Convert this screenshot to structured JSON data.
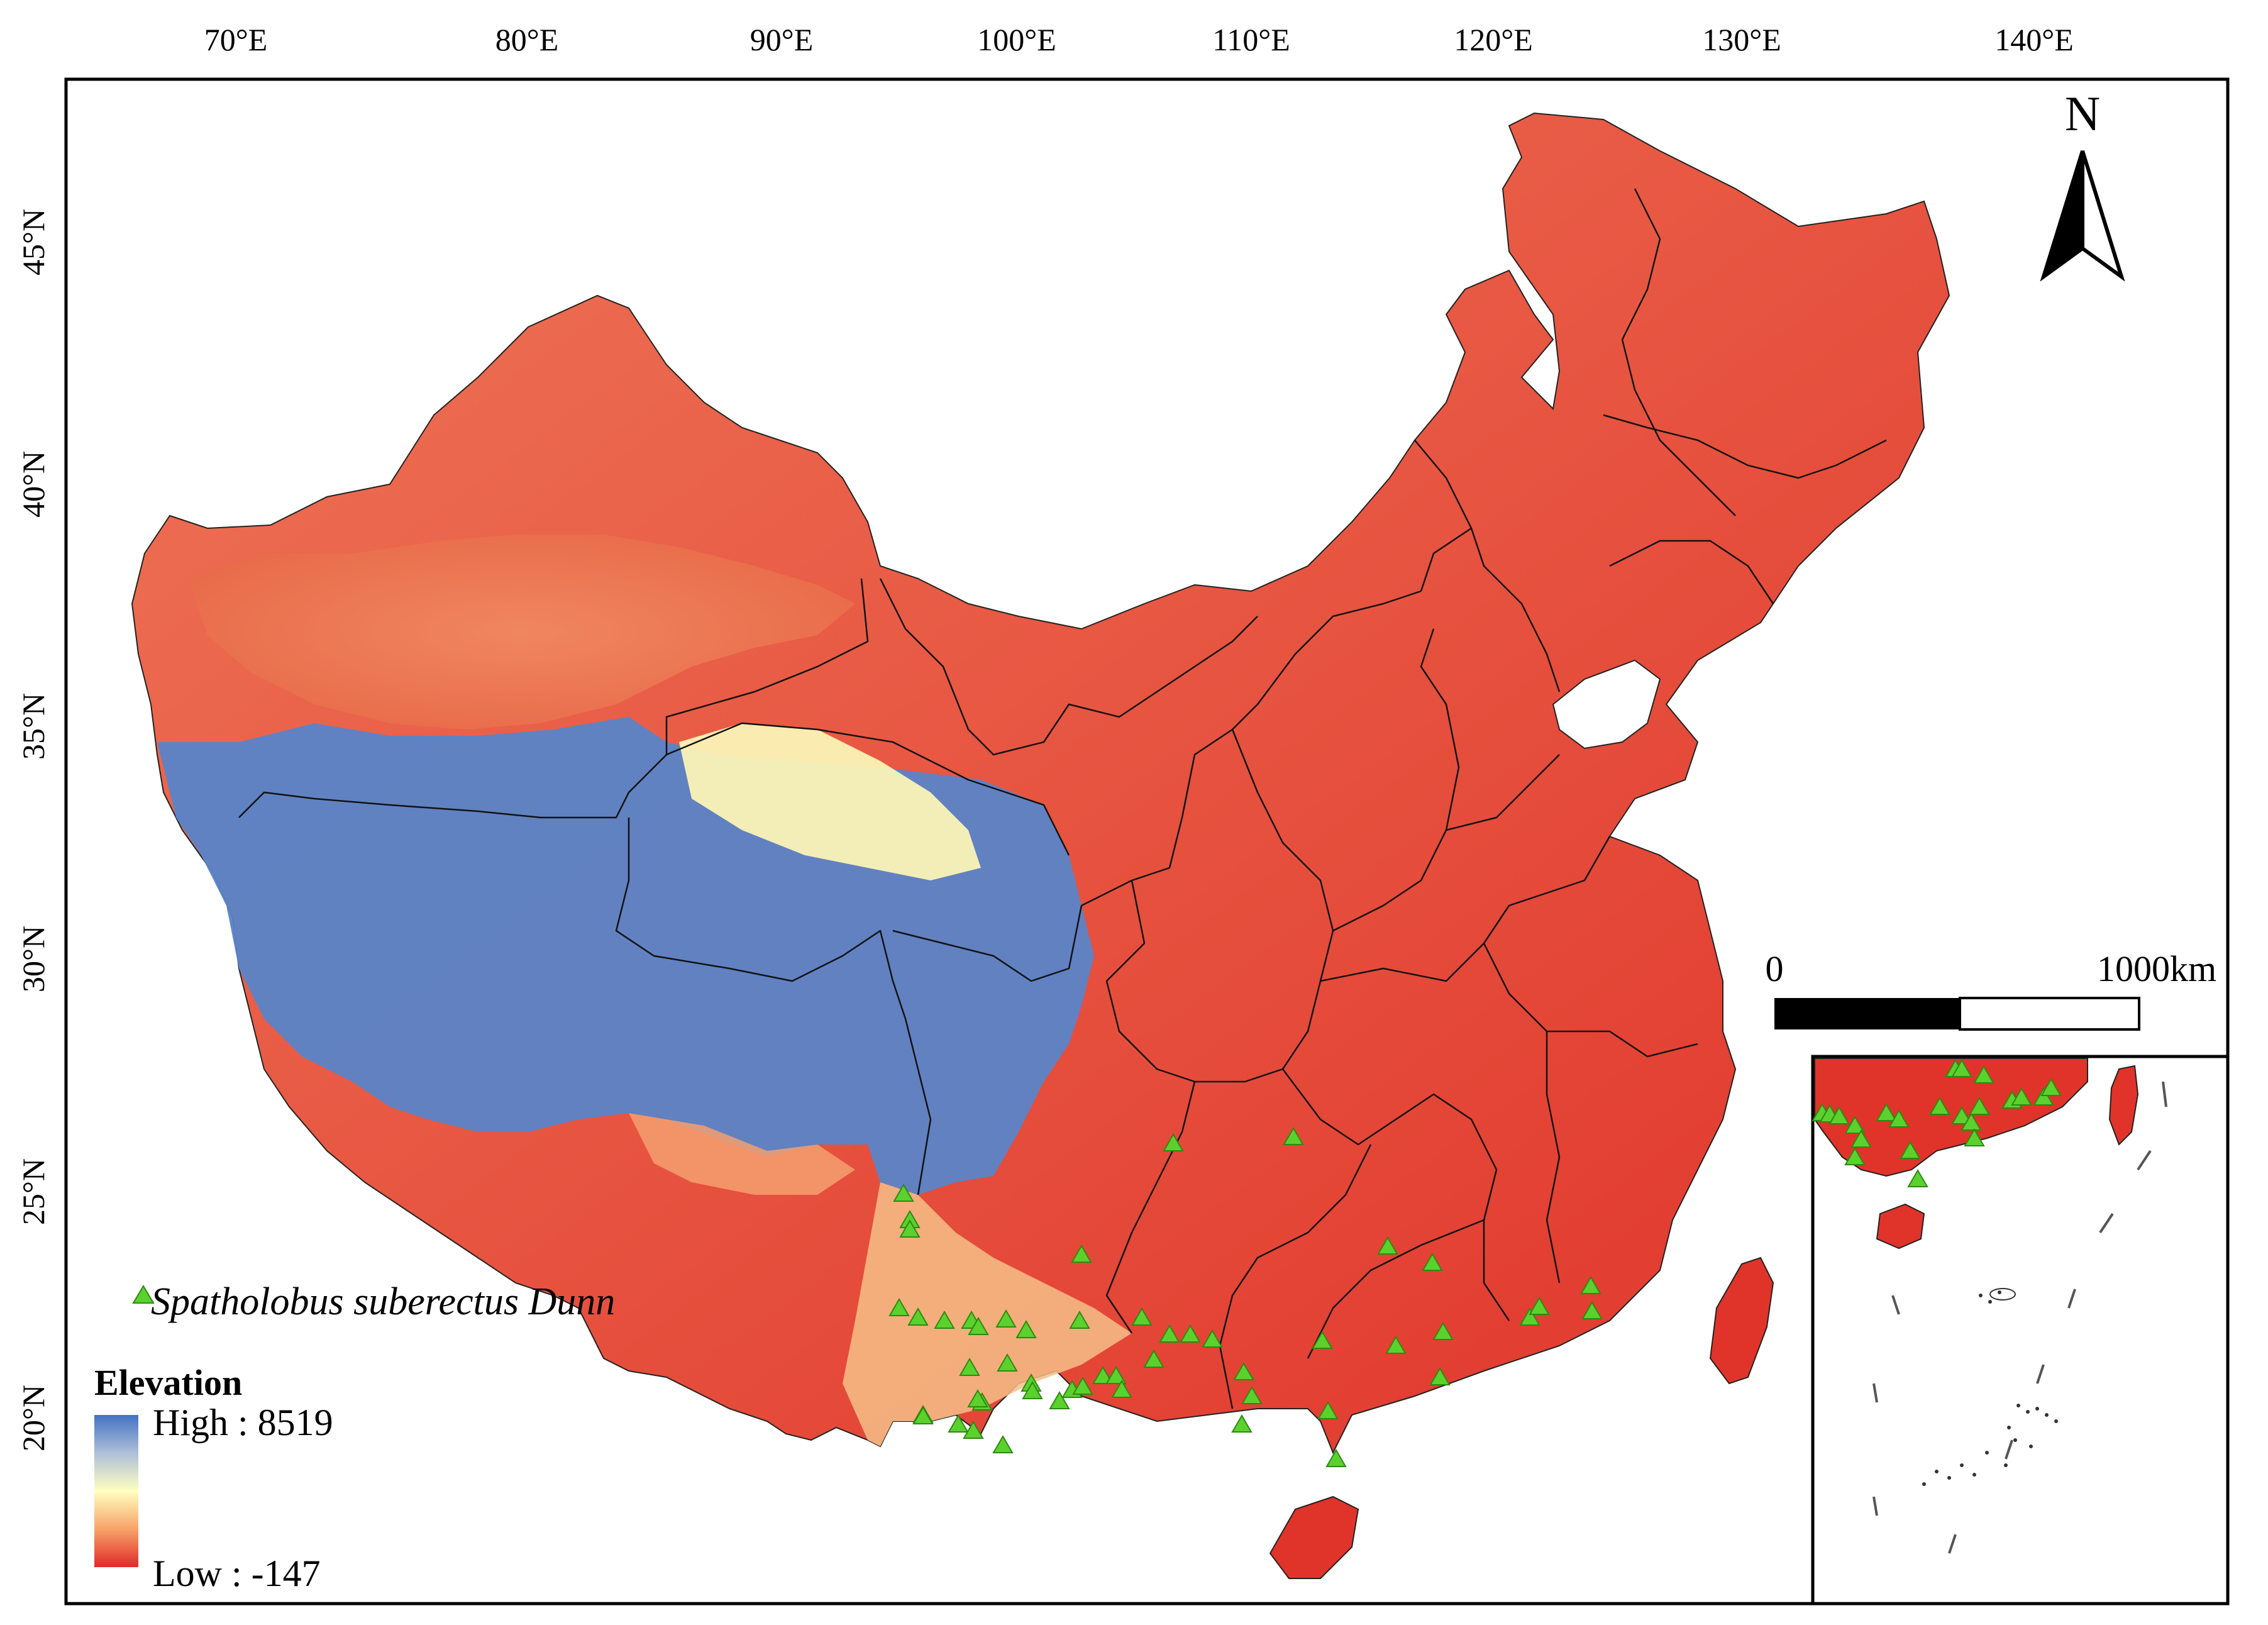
{
  "map": {
    "longitude_labels": [
      "70°E",
      "80°E",
      "90°E",
      "100°E",
      "110°E",
      "120°E",
      "130°E",
      "140°E"
    ],
    "latitude_labels": [
      "45°N",
      "40°N",
      "35°N",
      "30°N",
      "25°N",
      "20°N"
    ],
    "north_arrow": {
      "letter": "N",
      "icon": "north-arrow-icon"
    },
    "scale_bar": {
      "start_label": "0",
      "end_label": "1000km"
    },
    "legend": {
      "species_label": "Spatholobus suberectus Dunn",
      "species_marker_color": "#5bd12e",
      "elevation_title": "Elevation",
      "high_label": "High : 8519",
      "low_label": "Low : -147",
      "color_ramp": [
        "#4472c4",
        "#aebfd8",
        "#ffffc0",
        "#f7a36a",
        "#e02a2a"
      ]
    },
    "inset": {
      "name": "South China Sea inset",
      "icon": "inset-map-frame"
    },
    "colors": {
      "lowland": "#e13a2c",
      "plateau": "#5a84c8",
      "basin": "#ec7a58",
      "occurrence_marker": "#5bd12e"
    }
  }
}
